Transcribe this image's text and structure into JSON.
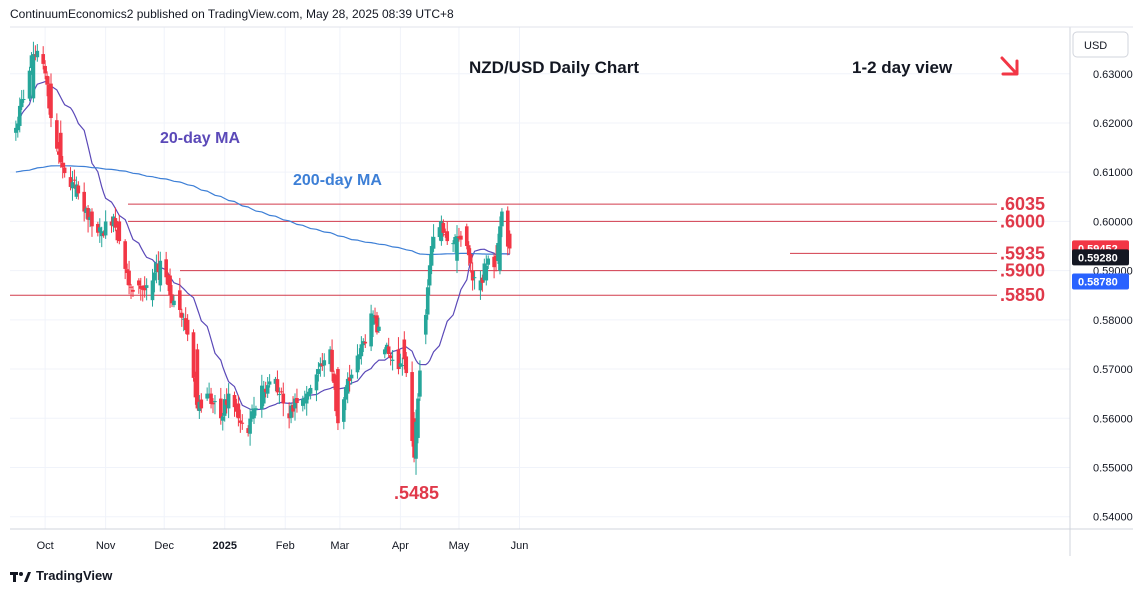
{
  "header": {
    "publisher_text": "ContinuumEconomics2 published on TradingView.com, May 28, 2025 08:39 UTC+8"
  },
  "footer": {
    "brand": "TradingView",
    "logo_icon": "tradingview-logo-icon"
  },
  "chart_data": {
    "type": "candlestick",
    "title": "NZD/USD Daily Chart",
    "subtitle": "1-2 day view",
    "currency_label": "USD",
    "x_tick_labels": [
      "Oct",
      "Nov",
      "Dec",
      "2025",
      "Feb",
      "Mar",
      "Apr",
      "May",
      "Jun"
    ],
    "y_ticks": [
      "0.63000",
      "0.62000",
      "0.61000",
      "0.60000",
      "0.59000",
      "0.58000",
      "0.57000",
      "0.56000",
      "0.55000",
      "0.54000"
    ],
    "y_tick_values": [
      0.63,
      0.62,
      0.61,
      0.6,
      0.59,
      0.58,
      0.57,
      0.56,
      0.55,
      0.54
    ],
    "ylim": [
      0.5375,
      0.6395
    ],
    "grid": true,
    "moving_averages": [
      {
        "name": "20-day MA",
        "color": "#5b49b8"
      },
      {
        "name": "200-day MA",
        "color": "#3d7fd6"
      }
    ],
    "price_badges": [
      {
        "label": "0.59452",
        "value": 0.59452,
        "color": "#f23645"
      },
      {
        "label": "0.59280",
        "value": 0.5928,
        "color": "#131722"
      },
      {
        "label": "0.58780",
        "value": 0.5878,
        "color": "#2962ff"
      }
    ],
    "levels": [
      {
        "label": ".6035",
        "value": 0.6035
      },
      {
        "label": ".6000",
        "value": 0.6
      },
      {
        "label": ".5935",
        "value": 0.5935
      },
      {
        "label": ".5900",
        "value": 0.59
      },
      {
        "label": ".5850",
        "value": 0.585
      }
    ],
    "low_annotation": {
      "label": ".5485",
      "value": 0.5485
    },
    "trend_arrow": "down-right-arrow",
    "colors": {
      "up": "#26a69a",
      "down": "#f23645",
      "levels": "#d23b4c",
      "annotation": "#e0394a",
      "text": "#131722"
    },
    "anchors": [
      [
        "2024-09-16",
        0.618,
        0.619
      ],
      [
        "2024-09-25",
        0.625,
        0.634
      ],
      [
        "2024-09-30",
        0.634,
        0.632
      ],
      [
        "2024-10-04",
        0.628,
        0.621
      ],
      [
        "2024-10-09",
        0.618,
        0.612
      ],
      [
        "2024-10-14",
        0.609,
        0.607
      ],
      [
        "2024-10-17",
        0.605,
        0.6075
      ],
      [
        "2024-10-21",
        0.606,
        0.602
      ],
      [
        "2024-10-25",
        0.602,
        0.599
      ],
      [
        "2024-10-30",
        0.597,
        0.598
      ],
      [
        "2024-11-05",
        0.599,
        0.601
      ],
      [
        "2024-11-08",
        0.6,
        0.596
      ],
      [
        "2024-11-13",
        0.59,
        0.587
      ],
      [
        "2024-11-18",
        0.588,
        0.587
      ],
      [
        "2024-11-21",
        0.587,
        0.586
      ],
      [
        "2024-11-25",
        0.584,
        0.588
      ],
      [
        "2024-11-29",
        0.587,
        0.592
      ],
      [
        "2024-12-04",
        0.589,
        0.585
      ],
      [
        "2024-12-09",
        0.586,
        0.582
      ],
      [
        "2024-12-13",
        0.58,
        0.577
      ],
      [
        "2024-12-18",
        0.574,
        0.562
      ],
      [
        "2024-12-23",
        0.564,
        0.565
      ],
      [
        "2024-12-30",
        0.564,
        0.56
      ],
      [
        "2025-01-03",
        0.562,
        0.565
      ],
      [
        "2025-01-08",
        0.563,
        0.56
      ],
      [
        "2025-01-13",
        0.558,
        0.557
      ],
      [
        "2025-01-16",
        0.56,
        0.562
      ],
      [
        "2025-01-21",
        0.563,
        0.566
      ],
      [
        "2025-01-27",
        0.567,
        0.568
      ],
      [
        "2025-01-31",
        0.565,
        0.563
      ],
      [
        "2025-02-03",
        0.561,
        0.56
      ],
      [
        "2025-02-06",
        0.562,
        0.564
      ],
      [
        "2025-02-12",
        0.563,
        0.565
      ],
      [
        "2025-02-18",
        0.569,
        0.57
      ],
      [
        "2025-02-24",
        0.571,
        0.574
      ],
      [
        "2025-02-28",
        0.57,
        0.559
      ],
      [
        "2025-03-05",
        0.565,
        0.568
      ],
      [
        "2025-03-11",
        0.572,
        0.573
      ],
      [
        "2025-03-18",
        0.579,
        0.581
      ],
      [
        "2025-03-24",
        0.573,
        0.574
      ],
      [
        "2025-03-31",
        0.574,
        0.57
      ],
      [
        "2025-04-03",
        0.576,
        0.572
      ],
      [
        "2025-04-08",
        0.56,
        0.552
      ],
      [
        "2025-04-10",
        0.556,
        0.564
      ],
      [
        "2025-04-14",
        0.577,
        0.581
      ],
      [
        "2025-04-17",
        0.591,
        0.595
      ],
      [
        "2025-04-22",
        0.596,
        0.6
      ],
      [
        "2025-04-25",
        0.598,
        0.596
      ],
      [
        "2025-04-30",
        0.592,
        0.597
      ],
      [
        "2025-05-05",
        0.599,
        0.595
      ],
      [
        "2025-05-08",
        0.59,
        0.588
      ],
      [
        "2025-05-12",
        0.586,
        0.588
      ],
      [
        "2025-05-15",
        0.588,
        0.591
      ],
      [
        "2025-05-20",
        0.593,
        0.592
      ],
      [
        "2025-05-22",
        0.59,
        0.599
      ],
      [
        "2025-05-23",
        0.599,
        0.602
      ],
      [
        "2025-05-27",
        0.5975,
        0.5945
      ]
    ]
  }
}
